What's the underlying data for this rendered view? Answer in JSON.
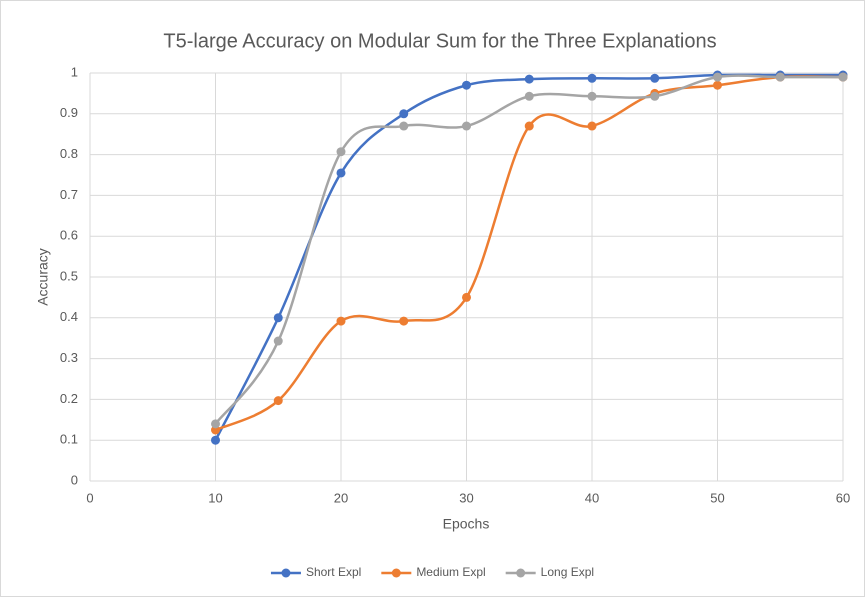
{
  "chart_data": {
    "type": "line",
    "title": "T5-large Accuracy on Modular Sum for the Three Explanations",
    "x_label": "Epochs",
    "y_label": "Accuracy",
    "x": [
      10,
      15,
      20,
      25,
      30,
      35,
      40,
      45,
      50,
      55,
      60
    ],
    "series": [
      {
        "name": "Short Expl",
        "color": "#4472c4",
        "values": [
          0.1,
          0.4,
          0.755,
          0.9,
          0.97,
          0.985,
          0.987,
          0.987,
          0.995,
          0.995,
          0.995
        ]
      },
      {
        "name": "Medium Expl",
        "color": "#ed7d31",
        "values": [
          0.125,
          0.197,
          0.392,
          0.392,
          0.45,
          0.87,
          0.87,
          0.95,
          0.97,
          0.99,
          0.99
        ]
      },
      {
        "name": "Long Expl",
        "color": "#a5a5a5",
        "values": [
          0.14,
          0.343,
          0.807,
          0.87,
          0.87,
          0.943,
          0.943,
          0.943,
          0.99,
          0.99,
          0.99
        ]
      }
    ],
    "xlim": [
      0,
      60
    ],
    "xticks": [
      0,
      10,
      20,
      30,
      40,
      50,
      60
    ],
    "ylim": [
      0,
      1
    ],
    "yticks": [
      0,
      0.1,
      0.2,
      0.3,
      0.4,
      0.5,
      0.6,
      0.7,
      0.8,
      0.9,
      1
    ],
    "grid": true,
    "smooth": true,
    "legend": "bottom"
  }
}
